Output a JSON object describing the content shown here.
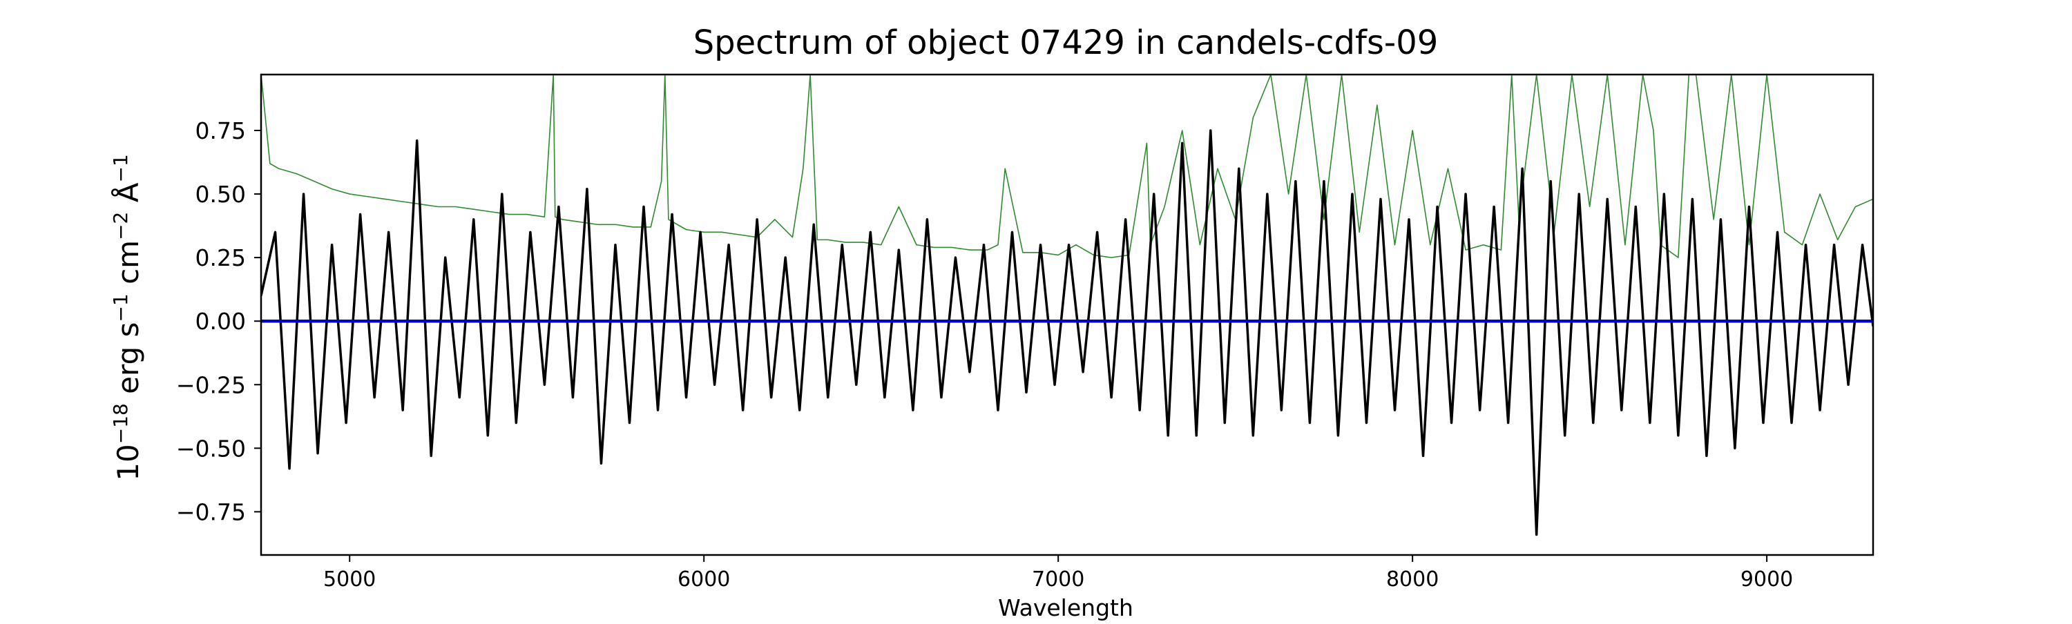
{
  "chart_data": {
    "type": "line",
    "title": "Spectrum of object 07429 in candels-cdfs-09",
    "xlabel": "Wavelength",
    "ylabel_base": "10",
    "ylabel_exp": "−18",
    "ylabel_unit": " erg s",
    "ylabel_unit_exp1": "−1",
    "ylabel_cm": " cm",
    "ylabel_cm_exp": "−2",
    "ylabel_ang": " Å",
    "ylabel_ang_exp": "−1",
    "xlim": [
      4750,
      9300
    ],
    "ylim": [
      -0.92,
      0.97
    ],
    "x_ticks": [
      5000,
      6000,
      7000,
      8000,
      9000
    ],
    "x_tick_labels": [
      "5000",
      "6000",
      "7000",
      "8000",
      "9000"
    ],
    "y_ticks": [
      -0.75,
      -0.5,
      -0.25,
      0.0,
      0.25,
      0.5,
      0.75
    ],
    "y_tick_labels": [
      "−0.75",
      "−0.50",
      "−0.25",
      "0.00",
      "0.25",
      "0.50",
      "0.75"
    ],
    "grid": false,
    "colors": {
      "flux": "#000000",
      "zero": "#0000cc",
      "model": "#2e8b2e",
      "axes": "#000000"
    },
    "series": [
      {
        "key": "flux",
        "x": [
          4750,
          4790,
          4830,
          4870,
          4910,
          4950,
          4990,
          5030,
          5070,
          5110,
          5150,
          5190,
          5230,
          5270,
          5310,
          5350,
          5390,
          5430,
          5470,
          5510,
          5550,
          5590,
          5630,
          5670,
          5710,
          5750,
          5790,
          5830,
          5870,
          5910,
          5950,
          5990,
          6030,
          6070,
          6110,
          6150,
          6190,
          6230,
          6270,
          6310,
          6350,
          6390,
          6430,
          6470,
          6510,
          6550,
          6590,
          6630,
          6670,
          6710,
          6750,
          6790,
          6830,
          6870,
          6910,
          6950,
          6990,
          7030,
          7070,
          7110,
          7150,
          7190,
          7230,
          7270,
          7310,
          7350,
          7390,
          7430,
          7470,
          7510,
          7550,
          7590,
          7630,
          7670,
          7710,
          7750,
          7790,
          7830,
          7870,
          7910,
          7950,
          7990,
          8030,
          8070,
          8110,
          8150,
          8190,
          8230,
          8270,
          8310,
          8350,
          8390,
          8430,
          8470,
          8510,
          8550,
          8590,
          8630,
          8670,
          8710,
          8750,
          8790,
          8830,
          8870,
          8910,
          8950,
          8990,
          9030,
          9070,
          9110,
          9150,
          9190,
          9230,
          9270,
          9300
        ],
        "y": [
          0.1,
          0.35,
          -0.58,
          0.5,
          -0.52,
          0.3,
          -0.4,
          0.42,
          -0.3,
          0.35,
          -0.35,
          0.71,
          -0.53,
          0.25,
          -0.3,
          0.4,
          -0.45,
          0.5,
          -0.4,
          0.35,
          -0.25,
          0.45,
          -0.3,
          0.52,
          -0.56,
          0.3,
          -0.4,
          0.45,
          -0.35,
          0.42,
          -0.3,
          0.35,
          -0.25,
          0.3,
          -0.35,
          0.4,
          -0.3,
          0.25,
          -0.35,
          0.38,
          -0.3,
          0.3,
          -0.25,
          0.35,
          -0.3,
          0.28,
          -0.35,
          0.4,
          -0.3,
          0.25,
          -0.2,
          0.3,
          -0.35,
          0.35,
          -0.28,
          0.3,
          -0.25,
          0.3,
          -0.2,
          0.35,
          -0.3,
          0.4,
          -0.35,
          0.5,
          -0.45,
          0.7,
          -0.45,
          0.75,
          -0.4,
          0.6,
          -0.45,
          0.5,
          -0.35,
          0.55,
          -0.4,
          0.55,
          -0.45,
          0.5,
          -0.4,
          0.48,
          -0.35,
          0.4,
          -0.53,
          0.45,
          -0.4,
          0.5,
          -0.35,
          0.45,
          -0.4,
          0.6,
          -0.84,
          0.55,
          -0.45,
          0.5,
          -0.4,
          0.48,
          -0.35,
          0.45,
          -0.4,
          0.5,
          -0.45,
          0.48,
          -0.53,
          0.4,
          -0.5,
          0.45,
          -0.4,
          0.35,
          -0.4,
          0.3,
          -0.35,
          0.3,
          -0.25,
          0.3,
          -0.02
        ]
      },
      {
        "key": "model",
        "x": [
          4750,
          4775,
          4800,
          4850,
          4900,
          4950,
          5000,
          5050,
          5100,
          5150,
          5200,
          5250,
          5300,
          5350,
          5400,
          5450,
          5500,
          5550,
          5575,
          5580,
          5600,
          5650,
          5700,
          5750,
          5800,
          5850,
          5880,
          5890,
          5900,
          5950,
          6000,
          6050,
          6100,
          6150,
          6200,
          6250,
          6280,
          6300,
          6320,
          6350,
          6400,
          6450,
          6500,
          6550,
          6600,
          6650,
          6700,
          6750,
          6800,
          6830,
          6850,
          6900,
          6950,
          7000,
          7050,
          7100,
          7150,
          7200,
          7250,
          7260,
          7300,
          7350,
          7400,
          7450,
          7500,
          7550,
          7600,
          7650,
          7700,
          7750,
          7800,
          7850,
          7900,
          7950,
          8000,
          8050,
          8100,
          8150,
          8200,
          8250,
          8280,
          8300,
          8350,
          8400,
          8450,
          8500,
          8550,
          8600,
          8650,
          8680,
          8700,
          8750,
          8780,
          8800,
          8850,
          8900,
          8950,
          9000,
          9050,
          9100,
          9150,
          9200,
          9250,
          9300
        ],
        "y": [
          0.97,
          0.62,
          0.6,
          0.58,
          0.55,
          0.52,
          0.5,
          0.49,
          0.48,
          0.47,
          0.46,
          0.45,
          0.45,
          0.44,
          0.43,
          0.42,
          0.42,
          0.41,
          0.97,
          0.41,
          0.4,
          0.39,
          0.38,
          0.38,
          0.37,
          0.37,
          0.55,
          0.97,
          0.4,
          0.36,
          0.35,
          0.35,
          0.34,
          0.33,
          0.4,
          0.33,
          0.6,
          0.97,
          0.32,
          0.32,
          0.31,
          0.31,
          0.3,
          0.45,
          0.3,
          0.29,
          0.29,
          0.28,
          0.28,
          0.3,
          0.6,
          0.27,
          0.27,
          0.26,
          0.3,
          0.26,
          0.25,
          0.26,
          0.7,
          0.3,
          0.45,
          0.75,
          0.3,
          0.6,
          0.4,
          0.8,
          0.97,
          0.5,
          0.97,
          0.4,
          0.97,
          0.35,
          0.85,
          0.3,
          0.75,
          0.3,
          0.6,
          0.28,
          0.3,
          0.28,
          0.97,
          0.4,
          0.97,
          0.35,
          0.97,
          0.45,
          0.97,
          0.3,
          0.97,
          0.75,
          0.3,
          0.25,
          0.97,
          0.97,
          0.4,
          0.97,
          0.3,
          0.97,
          0.35,
          0.3,
          0.5,
          0.32,
          0.45,
          0.48
        ]
      }
    ],
    "zero_line_y": 0.0
  }
}
